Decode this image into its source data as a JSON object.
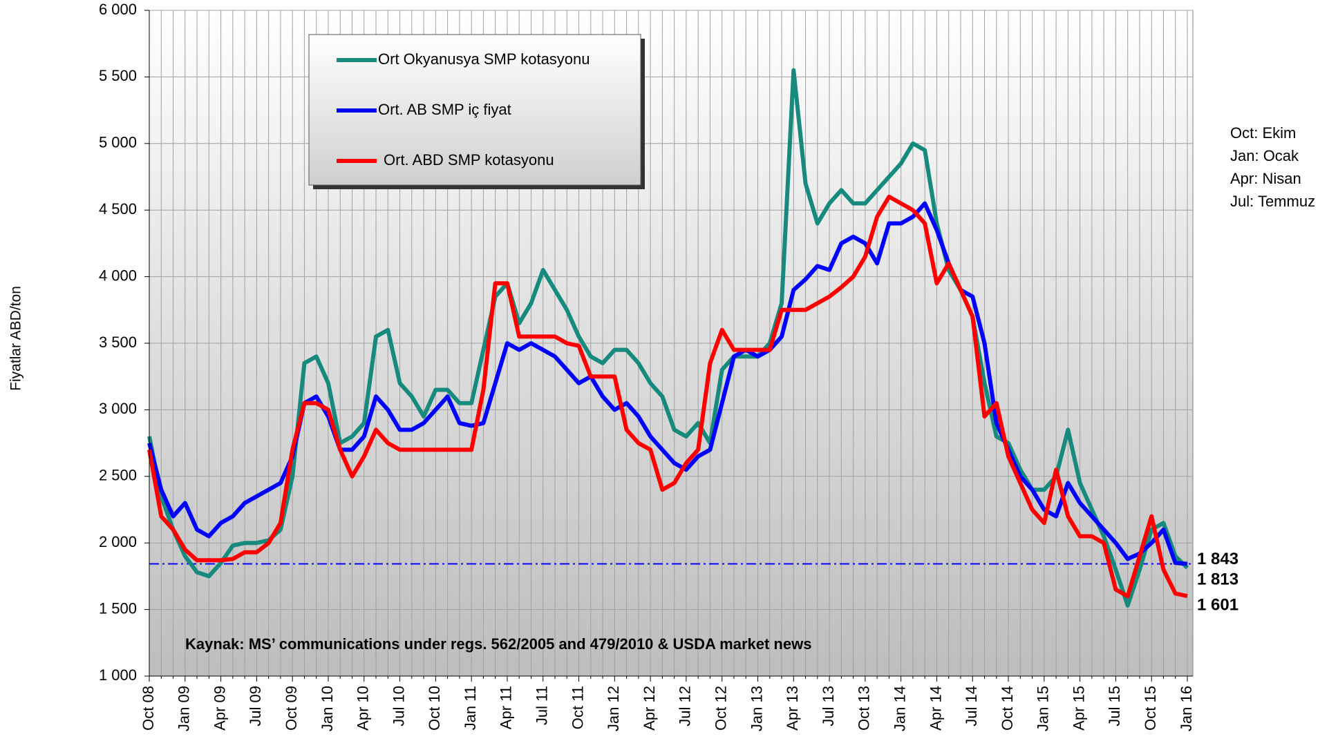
{
  "chart_data": {
    "type": "line",
    "y_label": "Fiyatlar ABD/ton",
    "source": "Kaynak: MS’ communications under regs. 562/2005 and 479/2010 & USDA market news",
    "notes": [
      "Oct: Ekim",
      "Jan: Ocak",
      "Apr: Nisan",
      "Jul: Temmuz"
    ],
    "categories": [
      "Oct 08",
      null,
      null,
      "Jan 09",
      null,
      null,
      "Apr 09",
      null,
      null,
      "Jul 09",
      null,
      null,
      "Oct 09",
      null,
      null,
      "Jan 10",
      null,
      null,
      "Apr 10",
      null,
      null,
      "Jul 10",
      null,
      null,
      "Oct 10",
      null,
      null,
      "Jan 11",
      null,
      null,
      "Apr 11",
      null,
      null,
      "Jul 11",
      null,
      null,
      "Oct 11",
      null,
      null,
      "Jan 12",
      null,
      null,
      "Apr 12",
      null,
      null,
      "Jul 12",
      null,
      null,
      "Oct 12",
      null,
      null,
      "Jan 13",
      null,
      null,
      "Apr 13",
      null,
      null,
      "Jul 13",
      null,
      null,
      "Oct 13",
      null,
      null,
      "Jan 14",
      null,
      null,
      "Apr 14",
      null,
      null,
      "Jul 14",
      null,
      null,
      "Oct 14",
      null,
      null,
      "Jan 15",
      null,
      null,
      "Apr 15",
      null,
      null,
      "Jul 15",
      null,
      null,
      "Oct 15",
      null,
      null,
      "Jan 16"
    ],
    "series": [
      {
        "name": "Ort  Okyanusya SMP kotasyonu",
        "color": "#168a7c",
        "label_color": "#4f6228",
        "values": [
          2800,
          2350,
          2100,
          1900,
          1780,
          1750,
          1850,
          1980,
          2000,
          2000,
          2020,
          2100,
          2500,
          3350,
          3400,
          3200,
          2750,
          2800,
          2900,
          3550,
          3600,
          3200,
          3100,
          2950,
          3150,
          3150,
          3050,
          3050,
          3450,
          3850,
          3950,
          3650,
          3800,
          4050,
          3900,
          3750,
          3550,
          3400,
          3350,
          3450,
          3450,
          3350,
          3200,
          3100,
          2850,
          2800,
          2900,
          2750,
          3300,
          3400,
          3400,
          3400,
          3500,
          3800,
          5550,
          4700,
          4400,
          4550,
          4650,
          4550,
          4550,
          4650,
          4750,
          4850,
          5000,
          4950,
          4400,
          4050,
          3900,
          3700,
          3200,
          2800,
          2750,
          2550,
          2400,
          2400,
          2500,
          2850,
          2450,
          2250,
          2050,
          1800,
          1530,
          1800,
          2100,
          2150,
          1900,
          1813
        ],
        "value_labels": [
          null,
          null,
          null,
          null,
          null,
          null,
          null,
          null,
          null,
          null,
          null,
          null,
          null,
          null,
          null,
          null,
          null,
          null,
          null,
          null,
          null,
          null,
          null,
          null,
          null,
          null,
          null,
          null,
          null,
          null,
          null,
          null,
          null,
          null,
          null,
          null,
          null,
          null,
          null,
          null,
          null,
          null,
          null,
          null,
          null,
          null,
          null,
          null,
          null,
          null,
          null,
          null,
          null,
          null,
          null,
          null,
          null,
          null,
          null,
          null,
          null,
          null,
          null,
          null,
          null,
          null,
          null,
          null,
          null,
          null,
          null,
          null,
          null,
          null,
          null,
          null,
          null,
          null,
          null,
          null,
          null,
          null,
          null,
          null,
          null,
          null,
          null,
          "1 813"
        ]
      },
      {
        "name": "Ort. AB SMP iç fiyat",
        "color": "#0000ff",
        "label_color": "#0000ff",
        "values": [
          2750,
          2400,
          2200,
          2300,
          2100,
          2050,
          2150,
          2200,
          2300,
          2350,
          2400,
          2450,
          2650,
          3050,
          3100,
          2950,
          2700,
          2700,
          2800,
          3100,
          3000,
          2850,
          2850,
          2900,
          3000,
          3100,
          2900,
          2880,
          2900,
          3200,
          3500,
          3450,
          3500,
          3450,
          3400,
          3300,
          3200,
          3250,
          3100,
          3000,
          3050,
          2950,
          2800,
          2700,
          2600,
          2550,
          2650,
          2700,
          3050,
          3400,
          3450,
          3400,
          3450,
          3550,
          3900,
          3980,
          4080,
          4050,
          4250,
          4300,
          4250,
          4100,
          4400,
          4400,
          4450,
          4550,
          4350,
          4100,
          3900,
          3850,
          3500,
          2900,
          2700,
          2500,
          2400,
          2250,
          2200,
          2450,
          2300,
          2200,
          2100,
          2000,
          1880,
          1920,
          2000,
          2100,
          1850,
          1843
        ],
        "value_labels": [
          null,
          null,
          null,
          null,
          null,
          null,
          null,
          null,
          null,
          null,
          null,
          null,
          null,
          null,
          null,
          null,
          null,
          null,
          null,
          null,
          null,
          null,
          null,
          null,
          null,
          null,
          null,
          null,
          null,
          null,
          null,
          null,
          null,
          null,
          null,
          null,
          null,
          null,
          null,
          null,
          null,
          null,
          null,
          null,
          null,
          null,
          null,
          null,
          null,
          null,
          null,
          null,
          null,
          null,
          null,
          null,
          null,
          null,
          null,
          null,
          null,
          null,
          null,
          null,
          null,
          null,
          null,
          null,
          null,
          null,
          null,
          null,
          null,
          null,
          null,
          null,
          null,
          null,
          null,
          null,
          null,
          null,
          null,
          null,
          null,
          null,
          null,
          "1 843"
        ]
      },
      {
        "name": "Ort. ABD SMP kotasyonu",
        "color": "#ff0000",
        "label_color": "#ff0000",
        "values": [
          2700,
          2200,
          2100,
          1950,
          1870,
          1870,
          1870,
          1880,
          1930,
          1930,
          2000,
          2150,
          2700,
          3050,
          3050,
          3000,
          2700,
          2500,
          2650,
          2850,
          2750,
          2700,
          2700,
          2700,
          2700,
          2700,
          2700,
          2700,
          3150,
          3950,
          3950,
          3550,
          3550,
          3550,
          3550,
          3500,
          3480,
          3250,
          3250,
          3250,
          2850,
          2750,
          2700,
          2400,
          2450,
          2600,
          2700,
          3350,
          3600,
          3450,
          3450,
          3450,
          3450,
          3750,
          3750,
          3750,
          3800,
          3850,
          3920,
          4000,
          4150,
          4450,
          4600,
          4550,
          4500,
          4400,
          3950,
          4100,
          3900,
          3700,
          2950,
          3050,
          2650,
          2450,
          2250,
          2150,
          2550,
          2200,
          2050,
          2050,
          2000,
          1650,
          1600,
          1900,
          2200,
          1800,
          1620,
          1601
        ],
        "value_labels": [
          null,
          null,
          null,
          null,
          null,
          null,
          null,
          null,
          null,
          null,
          null,
          null,
          null,
          null,
          null,
          null,
          null,
          null,
          null,
          null,
          null,
          null,
          null,
          null,
          null,
          null,
          null,
          null,
          null,
          null,
          null,
          null,
          null,
          null,
          null,
          null,
          null,
          null,
          null,
          null,
          null,
          null,
          null,
          null,
          null,
          null,
          null,
          null,
          null,
          null,
          null,
          null,
          null,
          null,
          null,
          null,
          null,
          null,
          null,
          null,
          null,
          null,
          null,
          null,
          null,
          null,
          null,
          null,
          null,
          null,
          null,
          null,
          null,
          null,
          null,
          null,
          null,
          null,
          null,
          null,
          null,
          null,
          null,
          null,
          null,
          null,
          null,
          "1 601"
        ]
      }
    ],
    "hline": {
      "value": 1843,
      "color": "#0000ff"
    },
    "ylim": [
      1000,
      6000
    ],
    "yticks": [
      {
        "value": 1000,
        "label": "1 000"
      },
      {
        "value": 1500,
        "label": "1 500"
      },
      {
        "value": 2000,
        "label": "2 000"
      },
      {
        "value": 2500,
        "label": "2 500"
      },
      {
        "value": 3000,
        "label": "3 000"
      },
      {
        "value": 3500,
        "label": "3 500"
      },
      {
        "value": 4000,
        "label": "4 000"
      },
      {
        "value": 4500,
        "label": "4 500"
      },
      {
        "value": 5000,
        "label": "5 000"
      },
      {
        "value": 5500,
        "label": "5 500"
      },
      {
        "value": 6000,
        "label": "6 000"
      }
    ],
    "grid": true
  }
}
